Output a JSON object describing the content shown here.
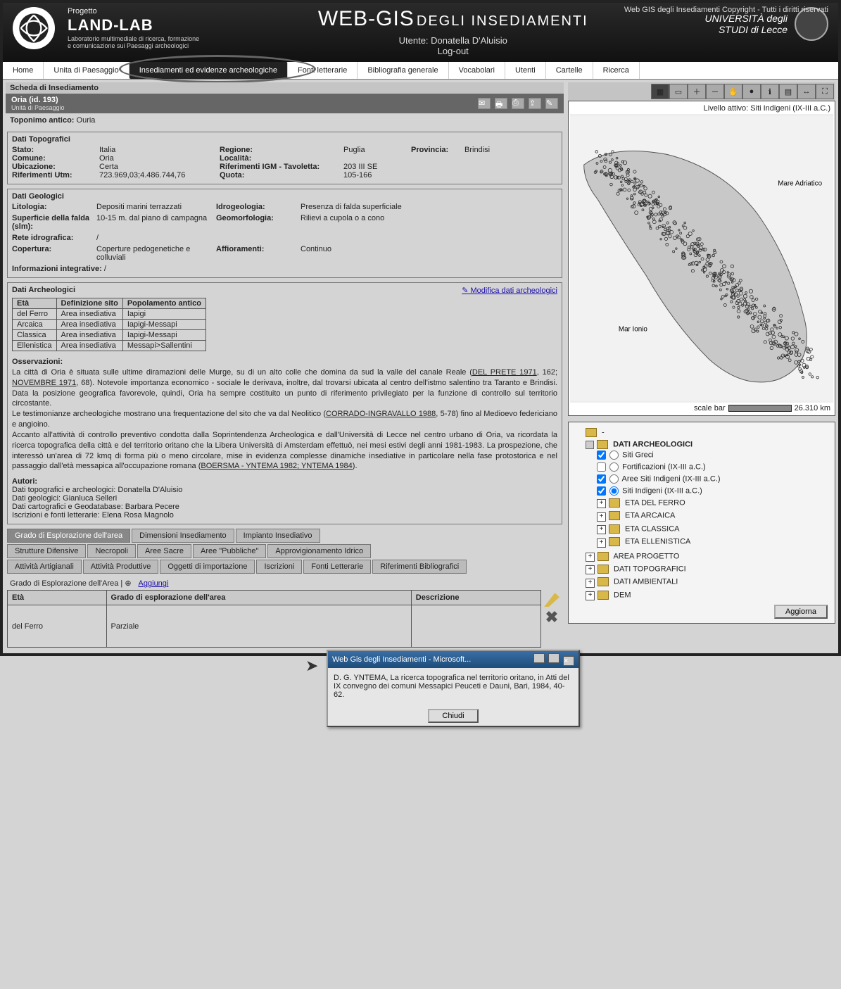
{
  "header": {
    "copyright": "Web GIS degli Insediamenti Copyright - Tutti i diritti riservati",
    "project_label": "Progetto",
    "project_name": "LAND-LAB",
    "project_sub": "Laboratorio multimediale di ricerca, formazione e comunicazione sui Paesaggi archeologici",
    "title_main": "WEB-GIS",
    "title_sub": "DEGLI INSEDIAMENTI",
    "user_prefix": "Utente:",
    "user_name": "Donatella D'Aluisio",
    "logout": "Log-out",
    "uni_line1": "UNIVERSITÀ degli",
    "uni_line2": "STUDI di Lecce"
  },
  "nav": {
    "items": [
      "Home",
      "Unita di Paesaggio",
      "Insediamenti ed evidenze archeologiche",
      "Fonti letterarie",
      "Bibliografia generale",
      "Vocabolari",
      "Utenti",
      "Cartelle",
      "Ricerca"
    ],
    "highlighted_index": 2
  },
  "record": {
    "card_title": "Scheda di Insediamento",
    "name": "Oria (id. 193)",
    "sub": "Unità di Paesaggio",
    "toponimo_label": "Toponimo antico:",
    "toponimo_value": "Ouria"
  },
  "topo": {
    "title": "Dati Topografici",
    "rows": [
      {
        "k1": "Stato:",
        "v1": "Italia",
        "k2": "Regione:",
        "v2": "Puglia",
        "k3": "Provincia:",
        "v3": "Brindisi"
      },
      {
        "k1": "Comune:",
        "v1": "Oria",
        "k2": "Località:",
        "v2": "",
        "k3": "",
        "v3": ""
      },
      {
        "k1": "Ubicazione:",
        "v1": "Certa",
        "k2": "Riferimenti IGM - Tavoletta:",
        "v2": "203 III SE",
        "k3": "",
        "v3": ""
      },
      {
        "k1": "Riferimenti Utm:",
        "v1": "723.969,03;4.486.744,76",
        "k2": "Quota:",
        "v2": "105-166",
        "k3": "",
        "v3": ""
      }
    ]
  },
  "geo": {
    "title": "Dati Geologici",
    "rows": [
      {
        "k1": "Litologia:",
        "v1": "Depositi marini terrazzati",
        "k2": "Idrogeologia:",
        "v2": "Presenza di falda superficiale"
      },
      {
        "k1": "Superficie della falda (slm):",
        "v1": "10-15 m. dal piano di campagna",
        "k2": "Geomorfologia:",
        "v2": "Rilievi a cupola o a cono"
      },
      {
        "k1": "Rete idrografica:",
        "v1": "/",
        "k2": "",
        "v2": ""
      },
      {
        "k1": "Copertura:",
        "v1": "Coperture pedogenetiche e colluviali",
        "k2": "Affioramenti:",
        "v2": "Continuo"
      }
    ],
    "info_label": "Informazioni integrative:",
    "info_value": "/"
  },
  "arch": {
    "title": "Dati Archeologici",
    "modify_link": "Modifica dati archeologici",
    "columns": [
      "Età",
      "Definizione sito",
      "Popolamento antico"
    ],
    "rows": [
      [
        "del Ferro",
        "Area insediativa",
        "Iapigi"
      ],
      [
        "Arcaica",
        "Area insediativa",
        "Iapigi-Messapi"
      ],
      [
        "Classica",
        "Area insediativa",
        "Iapigi-Messapi"
      ],
      [
        "Ellenistica",
        "Area insediativa",
        "Messapi>Sallentini"
      ]
    ]
  },
  "obs": {
    "title": "Osservazioni:",
    "p1": "La città di Oria è situata sulle ultime diramazioni delle Murge, su di un alto colle che domina da sud la valle del canale Reale (",
    "l1": "DEL PRETE 1971",
    "p1b": ", 162; ",
    "l1b": "NOVEMBRE 1971",
    "p1c": ", 68). Notevole importanza economico - sociale le derivava, inoltre, dal trovarsi ubicata al centro dell'istmo salentino tra Taranto e Brindisi. Data la posizione geografica favorevole, quindi, Oria ha sempre costituito un punto di riferimento privilegiato per la funzione di controllo sul territorio circostante.",
    "p2": "Le testimonianze archeologiche mostrano una frequentazione del sito che va dal Neolitico (",
    "l2": "CORRADO-INGRAVALLO 1988",
    "p2b": ", 5-78) fino al Medioevo federiciano e angioino.",
    "p3": "Accanto all'attività di controllo preventivo condotta dalla Soprintendenza Archeologica e dall'Università di Lecce nel centro urbano di Oria, va ricordata la ricerca topografica della città e del territorio oritano che la Libera Università di Amsterdam effettuò, nei mesi estivi degli anni 1981-1983. La prospezione, che interessò un'area di 72 kmq di forma più o meno circolare, mise in evidenza complesse dinamiche insediative in particolare nella fase protostorica e nel passaggio dall'età messapica all'occupazione romana (",
    "l3": "BOERSMA - YNTEMA 1982; YNTEMA 1984",
    "p3b": ")."
  },
  "authors": {
    "title": "Autori:",
    "lines": [
      "Dati topografici e archeologici: Donatella D'Aluisio",
      "Dati geologici: Gianluca Selleri",
      "Dati cartografici e Geodatabase: Barbara Pecere",
      "Iscrizioni e fonti letterarie: Elena Rosa Magnolo"
    ]
  },
  "popup": {
    "title": "Web Gis degli Insediamenti - Microsoft...",
    "body": "D. G. YNTEMA, La ricerca topografica nel territorio oritano, in Atti del IX convegno dei comuni Messapici Peuceti e Dauni, Bari, 1984, 40-62.",
    "close": "Chiudi"
  },
  "map": {
    "active_label": "Livello attivo: Siti Indigeni (IX-III a.C.)",
    "mare_adriatico": "Mare Adriatico",
    "mar_ionio": "Mar Ionio",
    "scale_label": "scale bar",
    "scale_value": "26.310 km",
    "land_color": "#c8c8c8",
    "sea_color": "#f2f2f2",
    "point_color": "#2b2b2b"
  },
  "tree": {
    "root": "DATI ARCHEOLOGICI",
    "layers": [
      {
        "checked": true,
        "radio": false,
        "label": "Siti Greci"
      },
      {
        "checked": false,
        "radio": false,
        "label": "Fortificazioni (IX-III a.C.)"
      },
      {
        "checked": true,
        "radio": false,
        "label": "Aree Siti Indigeni (IX-III a.C.)"
      },
      {
        "checked": true,
        "radio": true,
        "label": "Siti Indigeni (IX-III a.C.)"
      }
    ],
    "sub_eras": [
      "ETA DEL FERRO",
      "ETA ARCAICA",
      "ETA CLASSICA",
      "ETA ELLENISTICA"
    ],
    "other_roots": [
      "AREA PROGETTO",
      "DATI TOPOGRAFICI",
      "DATI AMBIENTALI",
      "DEM"
    ],
    "update": "Aggiorna"
  },
  "tabs": {
    "row1": [
      "Grado di Esplorazione dell'area",
      "Dimensioni Insediamento",
      "Impianto Insediativo"
    ],
    "row2": [
      "Strutture Difensive",
      "Necropoli",
      "Aree Sacre",
      "Aree \"Pubbliche\"",
      "Approvigionamento Idrico"
    ],
    "row3": [
      "Attività Artigianali",
      "Attività Produttive",
      "Oggetti di importazione",
      "Iscrizioni",
      "Fonti Letterarie",
      "Riferimenti Bibliografici"
    ],
    "active_row": 0,
    "active_index": 0
  },
  "grado": {
    "title": "Grado di Esplorazione dell'Area | ",
    "add": "Aggiungi",
    "columns": [
      "Età",
      "Grado di esplorazione dell'area",
      "Descrizione"
    ],
    "row": [
      "del Ferro",
      "Parziale",
      ""
    ]
  }
}
